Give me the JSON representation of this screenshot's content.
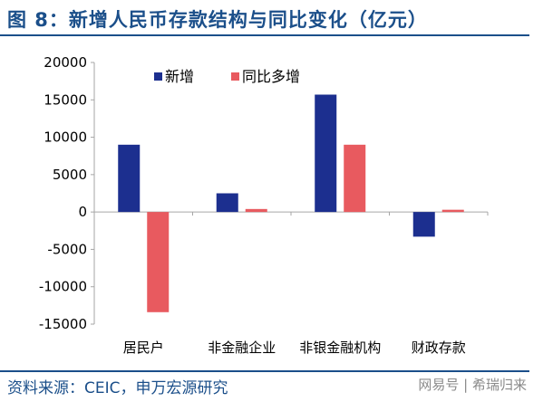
{
  "header": {
    "title": "图 8：新增人民币存款结构与同比变化（亿元）"
  },
  "footer": {
    "source": "资料来源：CEIC，申万宏源研究",
    "watermark": "网易号 | 希瑞归来"
  },
  "colors": {
    "accent": "#1b4f8a",
    "series1": "#1c2f8f",
    "series2": "#e85a5f"
  },
  "chart_data": {
    "type": "bar",
    "categories": [
      "居民户",
      "非金融企业",
      "非银金融机构",
      "财政存款"
    ],
    "series": [
      {
        "name": "新增",
        "values": [
          9000,
          2500,
          15700,
          -3300
        ]
      },
      {
        "name": "同比多增",
        "values": [
          -13400,
          400,
          9000,
          300
        ]
      }
    ],
    "yticks": [
      20000,
      15000,
      10000,
      5000,
      0,
      -5000,
      -10000,
      -15000
    ],
    "ylim": [
      -15000,
      20000
    ],
    "legend": "top",
    "grid": false
  }
}
